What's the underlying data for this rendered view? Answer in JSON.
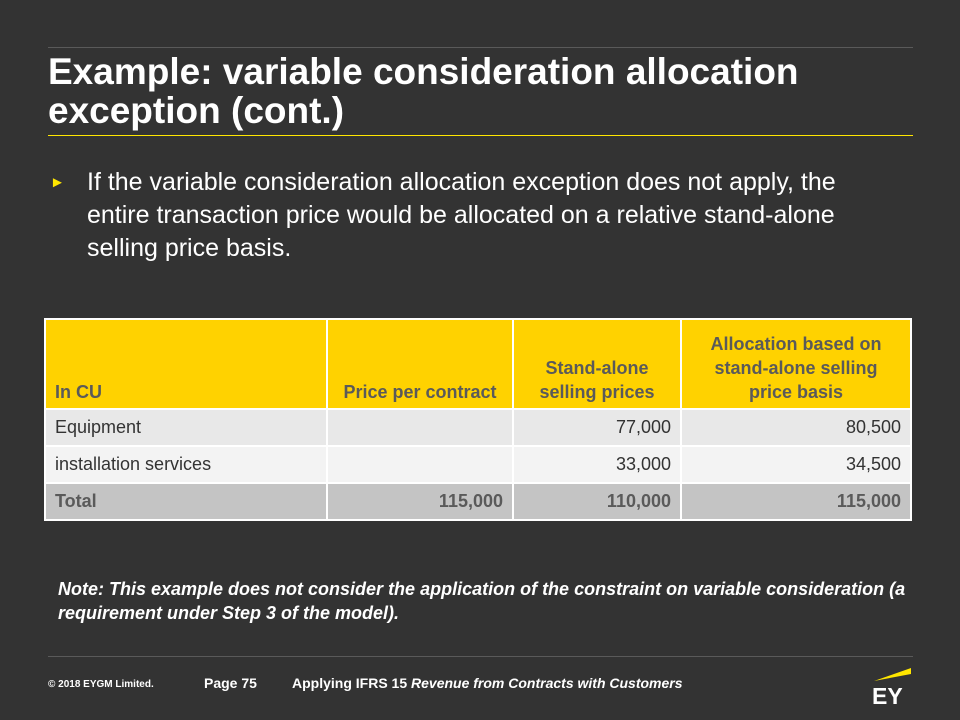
{
  "title": "Example: variable consideration allocation exception (cont.)",
  "bullet_text": "If the variable consideration allocation exception does not apply, the entire transaction price would be allocated on a relative stand-alone selling price basis.",
  "table": {
    "headers": [
      "In CU",
      "Price per contract",
      "Stand-alone selling prices",
      "Allocation based on stand-alone selling price basis"
    ],
    "rows": [
      {
        "label": "Equipment",
        "price": "",
        "standalone": "77,000",
        "allocation": "80,500"
      },
      {
        "label": "installation services",
        "price": "",
        "standalone": "33,000",
        "allocation": "34,500"
      }
    ],
    "total": {
      "label": "Total",
      "price": "115,000",
      "standalone": "110,000",
      "allocation": "115,000"
    }
  },
  "note": "Note: This example does not consider the application of the constraint on variable consideration (a requirement under Step 3 of the model).",
  "footer": {
    "copyright": "© 2018 EYGM Limited.",
    "page": "Page 75",
    "publication_prefix": "Applying IFRS 15",
    "publication_title": "Revenue from Contracts with Customers"
  },
  "logo": {
    "text": "EY",
    "accent_color": "#ffe600"
  },
  "colors": {
    "background": "#333333",
    "accent": "#ffe600",
    "table_header": "#ffd200"
  }
}
